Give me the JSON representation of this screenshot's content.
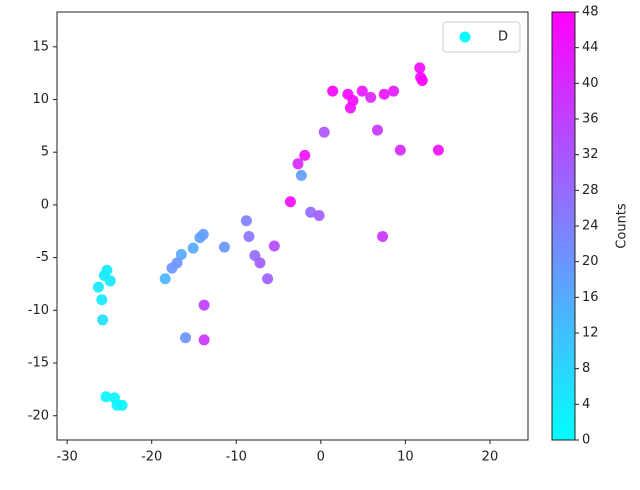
{
  "chart_data": {
    "type": "scatter",
    "xlim": [
      -31.2,
      24.5
    ],
    "xticks": [
      -30,
      -20,
      -10,
      0,
      10,
      20
    ],
    "ylim": [
      -22.3,
      18.3
    ],
    "yticks": [
      -20,
      -15,
      -10,
      -5,
      0,
      5,
      10,
      15
    ],
    "legend": "upper right",
    "series": [
      {
        "name": "D",
        "color": "#00ffff",
        "x": [
          11.7,
          11.8,
          12.0,
          1.4,
          3.2,
          3.8,
          3.5,
          4.9,
          5.9,
          7.5,
          8.6,
          0.4,
          6.7,
          9.4,
          13.9,
          -1.9,
          -2.7,
          -2.3,
          -3.6,
          -1.2,
          -0.2,
          7.3,
          -8.8,
          -8.5,
          -5.5,
          -7.8,
          -7.2,
          -6.3,
          -11.4,
          -13.9,
          -14.3,
          -15.1,
          -16.5,
          -17.0,
          -17.6,
          -18.4,
          -13.8,
          -16.0,
          -13.8,
          -25.3,
          -25.6,
          -24.9,
          -26.3,
          -25.9,
          -25.8,
          -25.4,
          -24.4,
          -24.1,
          -23.5
        ],
        "values": [
          13.0,
          12.1,
          11.8,
          10.8,
          10.5,
          9.9,
          9.2,
          10.8,
          10.2,
          10.5,
          10.8,
          6.9,
          7.1,
          5.2,
          5.2,
          4.7,
          3.9,
          2.8,
          0.3,
          -0.7,
          -1.0,
          -3.0,
          -1.5,
          -3.0,
          -3.9,
          -4.8,
          -5.5,
          -7.0,
          -4.0,
          -2.8,
          -3.1,
          -4.1,
          -4.7,
          -5.5,
          -6.0,
          -7.0,
          -9.5,
          -12.6,
          -12.8,
          -6.2,
          -6.7,
          -7.2,
          -7.8,
          -9.0,
          -10.9,
          -18.2,
          -18.3,
          -19.0,
          -19.0
        ],
        "color_values": [
          46,
          47,
          48,
          47,
          46,
          46,
          45,
          44,
          41,
          44,
          43,
          32,
          38,
          40,
          45,
          45,
          40,
          18,
          46,
          28,
          30,
          38,
          24,
          26,
          34,
          28,
          30,
          30,
          20,
          18,
          18,
          16,
          16,
          20,
          20,
          14,
          36,
          20,
          38,
          4,
          4,
          4,
          4,
          4,
          6,
          2,
          2,
          2,
          2
        ]
      }
    ],
    "colorbar": {
      "label": "Counts",
      "colormap": "cool",
      "lim": [
        0,
        48
      ],
      "ticks": [
        0,
        4,
        8,
        12,
        16,
        20,
        24,
        28,
        32,
        36,
        40,
        44,
        48
      ]
    }
  }
}
